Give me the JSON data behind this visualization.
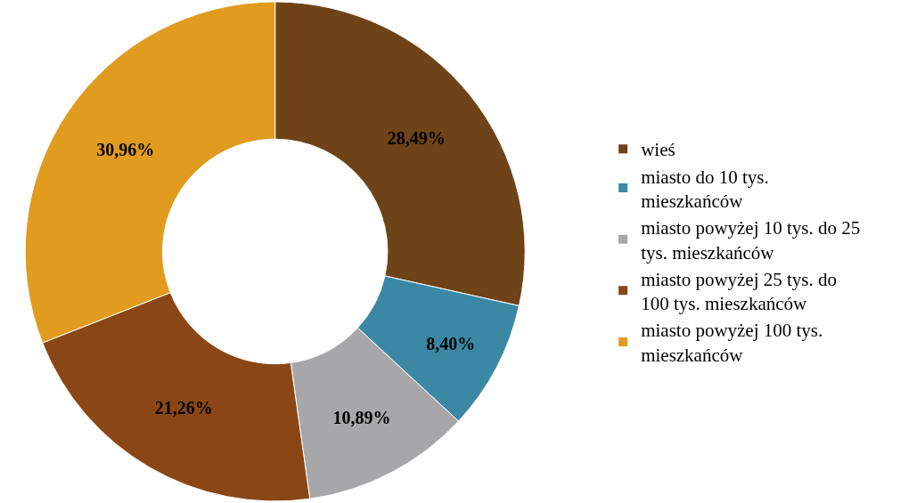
{
  "chart_data": {
    "type": "donut",
    "categories": [
      "wieś",
      "miasto do 10 tys. mieszkańców",
      "miasto powyżej 10 tys. do 25 tys. mieszkańców",
      "miasto powyżej 25 tys. do 100 tys. mieszkańców",
      "miasto powyżej 100 tys. mieszkańców"
    ],
    "values": [
      28.49,
      8.4,
      10.89,
      21.26,
      30.96
    ],
    "value_labels": [
      "28,49%",
      "8,40%",
      "10,89%",
      "21,26%",
      "30,96%"
    ],
    "colors": [
      "#6e4317",
      "#3b88a4",
      "#a7a7a9",
      "#8a4715",
      "#e19b1e"
    ],
    "legend": "right"
  }
}
